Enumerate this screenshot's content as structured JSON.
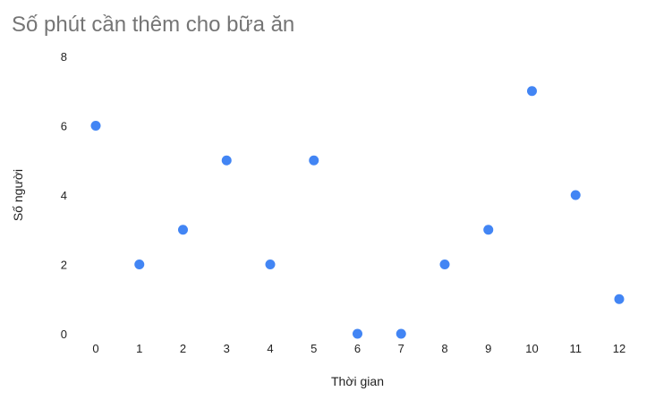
{
  "chart_data": {
    "type": "scatter",
    "title": "Số phút cần thêm cho bữa ăn",
    "xlabel": "Thời gian",
    "ylabel": "Số người",
    "x": [
      0,
      1,
      2,
      3,
      4,
      5,
      6,
      7,
      8,
      9,
      10,
      11,
      12
    ],
    "y": [
      6,
      2,
      3,
      5,
      2,
      5,
      0,
      0,
      2,
      3,
      7,
      4,
      1
    ],
    "xlim": [
      0,
      12
    ],
    "ylim": [
      0,
      8
    ],
    "x_ticks": [
      "0",
      "1",
      "2",
      "3",
      "4",
      "5",
      "6",
      "7",
      "8",
      "9",
      "10",
      "11",
      "12"
    ],
    "y_ticks": [
      "0",
      "2",
      "4",
      "6",
      "8"
    ],
    "grid": false,
    "legend": "none",
    "colors": {
      "point": "#4285f4",
      "title": "#757575",
      "text": "#222222"
    }
  }
}
